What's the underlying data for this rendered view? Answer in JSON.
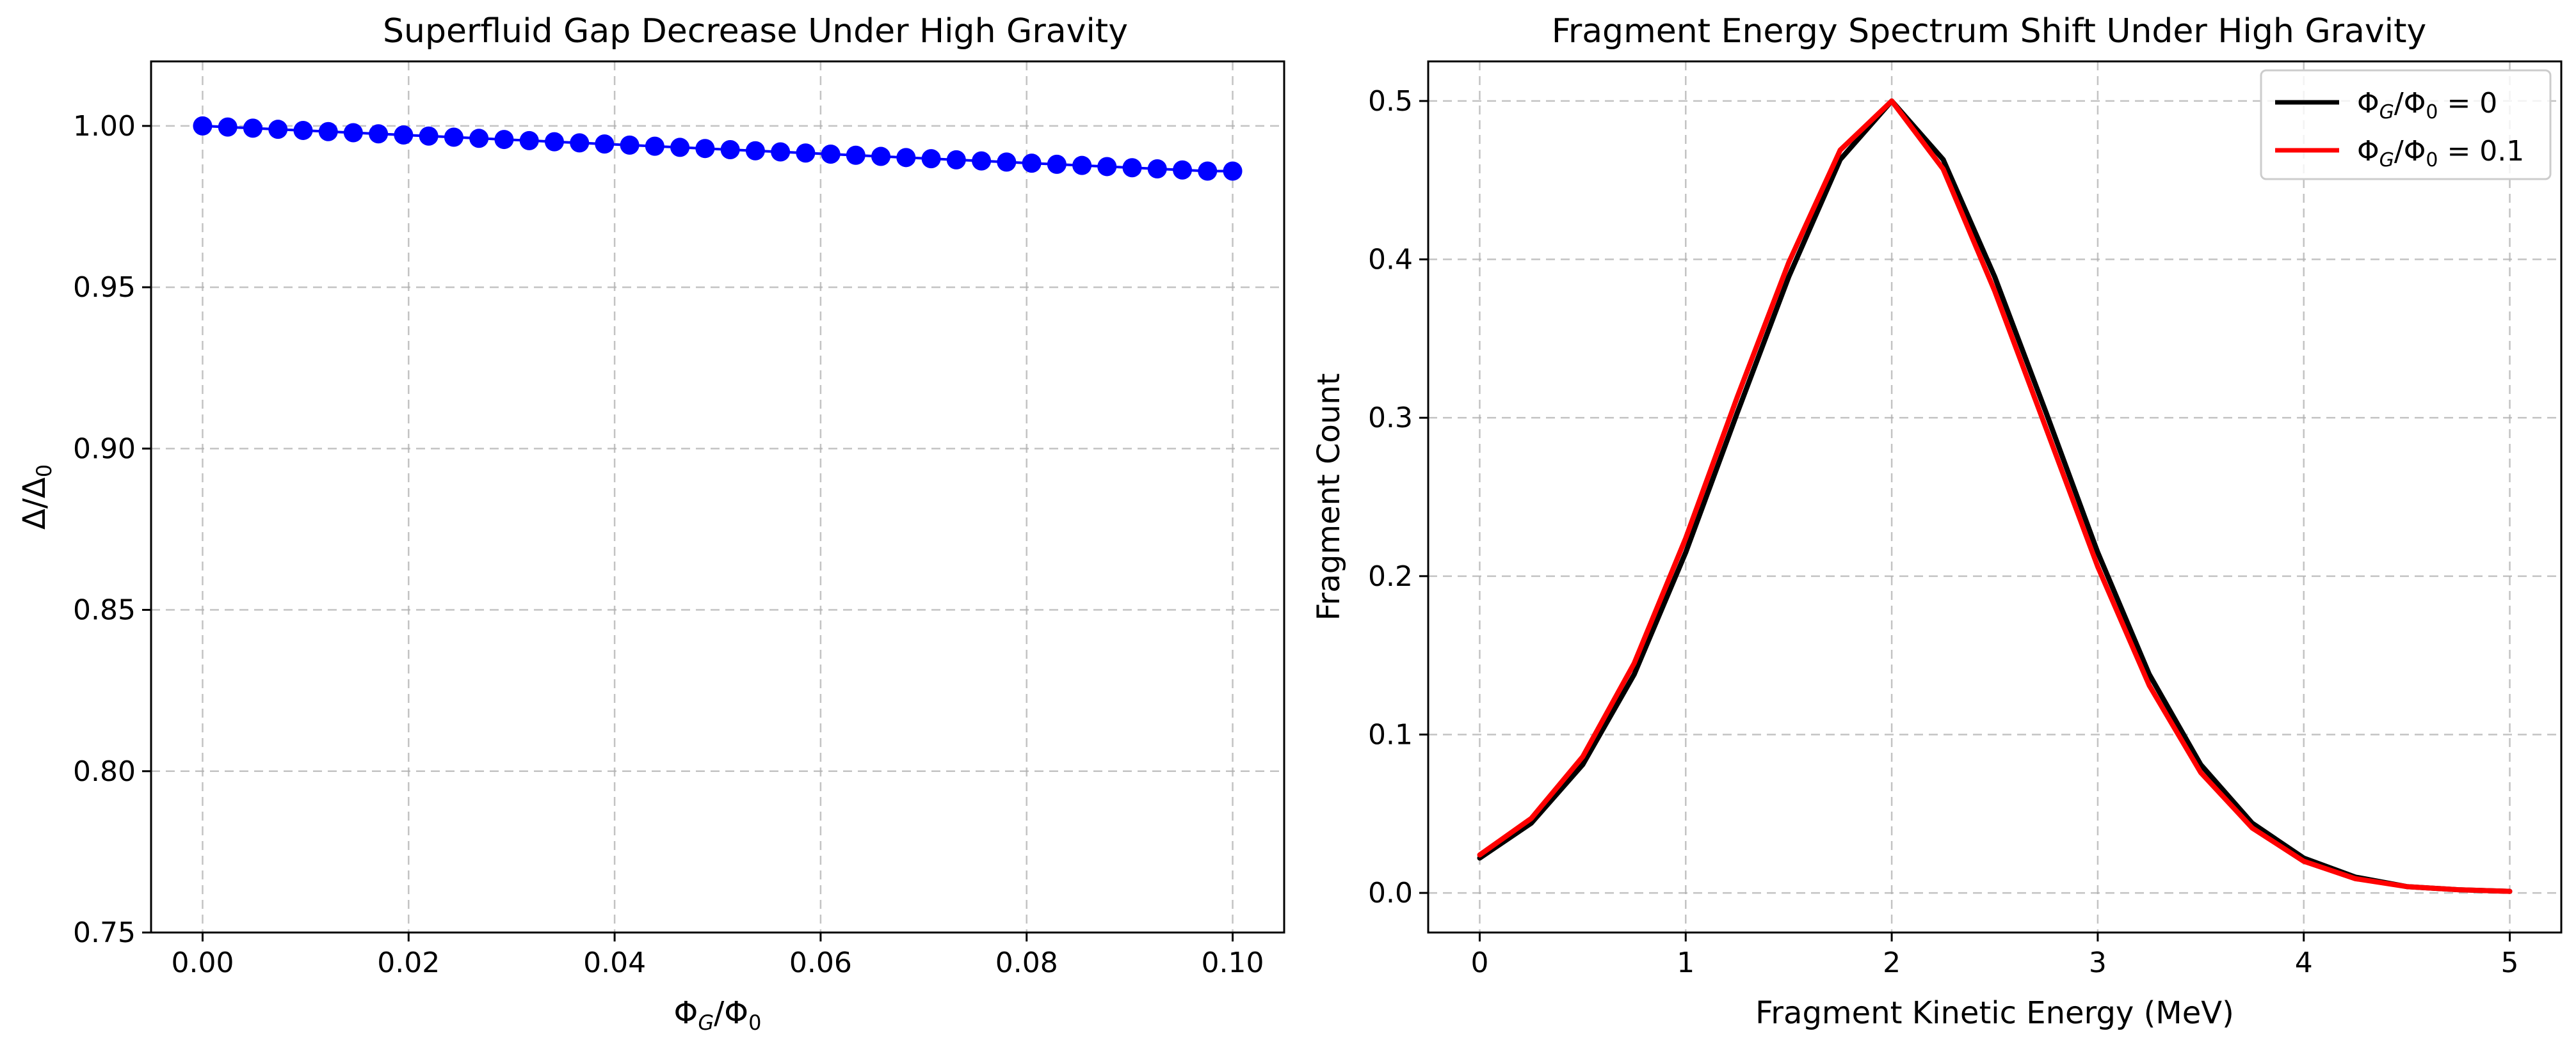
{
  "chart_data": [
    {
      "type": "scatter",
      "title": "Superfluid Gap Decrease Under High Gravity",
      "xlabel": "Φ_G/Φ_0",
      "ylabel": "Δ/Δ_0",
      "xlim": [
        -0.005,
        0.105
      ],
      "ylim": [
        0.75,
        1.02
      ],
      "xticks": [
        0.0,
        0.02,
        0.04,
        0.06,
        0.08,
        0.1
      ],
      "xtick_labels": [
        "0.00",
        "0.02",
        "0.04",
        "0.06",
        "0.08",
        "0.10"
      ],
      "yticks": [
        0.75,
        0.8,
        0.85,
        0.9,
        0.95,
        1.0
      ],
      "ytick_labels": [
        "0.75",
        "0.80",
        "0.85",
        "0.90",
        "0.95",
        "1.00"
      ],
      "grid": true,
      "series": [
        {
          "color": "#0000ff",
          "line": true,
          "marker": "circle",
          "x": [
            0.0,
            0.00244,
            0.00488,
            0.00732,
            0.00976,
            0.0122,
            0.01463,
            0.01707,
            0.01951,
            0.02195,
            0.02439,
            0.02683,
            0.02927,
            0.03171,
            0.03415,
            0.03659,
            0.03902,
            0.04146,
            0.0439,
            0.04634,
            0.04878,
            0.05122,
            0.05366,
            0.0561,
            0.05854,
            0.06098,
            0.06341,
            0.06585,
            0.06829,
            0.07073,
            0.07317,
            0.07561,
            0.07805,
            0.08049,
            0.08293,
            0.08537,
            0.0878,
            0.09024,
            0.09268,
            0.09512,
            0.09756,
            0.1
          ],
          "y": [
            1.0,
            0.99965,
            0.9993,
            0.99895,
            0.9986,
            0.99825,
            0.9979,
            0.99755,
            0.9972,
            0.99685,
            0.9965,
            0.99615,
            0.9958,
            0.99545,
            0.9951,
            0.99475,
            0.9944,
            0.99405,
            0.9937,
            0.99335,
            0.993,
            0.99265,
            0.9923,
            0.99195,
            0.9916,
            0.99125,
            0.9909,
            0.99055,
            0.9902,
            0.98985,
            0.9895,
            0.98915,
            0.9888,
            0.98845,
            0.9881,
            0.98775,
            0.9874,
            0.98705,
            0.9867,
            0.98635,
            0.986,
            0.986
          ]
        }
      ]
    },
    {
      "type": "line",
      "title": "Fragment Energy Spectrum Shift Under High Gravity",
      "xlabel": "Fragment Kinetic Energy (MeV)",
      "ylabel": "Fragment Count",
      "xlim": [
        -0.25,
        5.25
      ],
      "ylim": [
        -0.025,
        0.525
      ],
      "xticks": [
        0,
        1,
        2,
        3,
        4,
        5
      ],
      "xtick_labels": [
        "0",
        "1",
        "2",
        "3",
        "4",
        "5"
      ],
      "yticks": [
        0.0,
        0.1,
        0.2,
        0.3,
        0.4,
        0.5
      ],
      "ytick_labels": [
        "0.0",
        "0.1",
        "0.2",
        "0.3",
        "0.4",
        "0.5"
      ],
      "grid": true,
      "legend_position": "top-right",
      "series": [
        {
          "name": "Φ_G/Φ_0 = 0",
          "color": "#000000",
          "x": [
            0,
            0.25,
            0.5,
            0.75,
            1.0,
            1.25,
            1.5,
            1.75,
            2.0,
            2.25,
            2.5,
            2.75,
            3.0,
            3.25,
            3.5,
            3.75,
            4.0,
            4.25,
            4.5,
            4.75,
            5.0
          ],
          "y": [
            0.022,
            0.044,
            0.081,
            0.138,
            0.215,
            0.303,
            0.389,
            0.463,
            0.5,
            0.463,
            0.389,
            0.303,
            0.215,
            0.138,
            0.081,
            0.044,
            0.022,
            0.01,
            0.004,
            0.002,
            0.001
          ]
        },
        {
          "name": "Φ_G/Φ_0 = 0.1",
          "color": "#ff0000",
          "x": [
            0,
            0.25,
            0.5,
            0.75,
            1.0,
            1.25,
            1.5,
            1.75,
            2.0,
            2.25,
            2.5,
            2.75,
            3.0,
            3.25,
            3.5,
            3.75,
            4.0,
            4.25,
            4.5,
            4.75,
            5.0
          ],
          "y": [
            0.024,
            0.047,
            0.086,
            0.145,
            0.224,
            0.313,
            0.398,
            0.469,
            0.5,
            0.457,
            0.38,
            0.293,
            0.206,
            0.131,
            0.076,
            0.041,
            0.02,
            0.009,
            0.004,
            0.002,
            0.001
          ]
        }
      ]
    }
  ]
}
